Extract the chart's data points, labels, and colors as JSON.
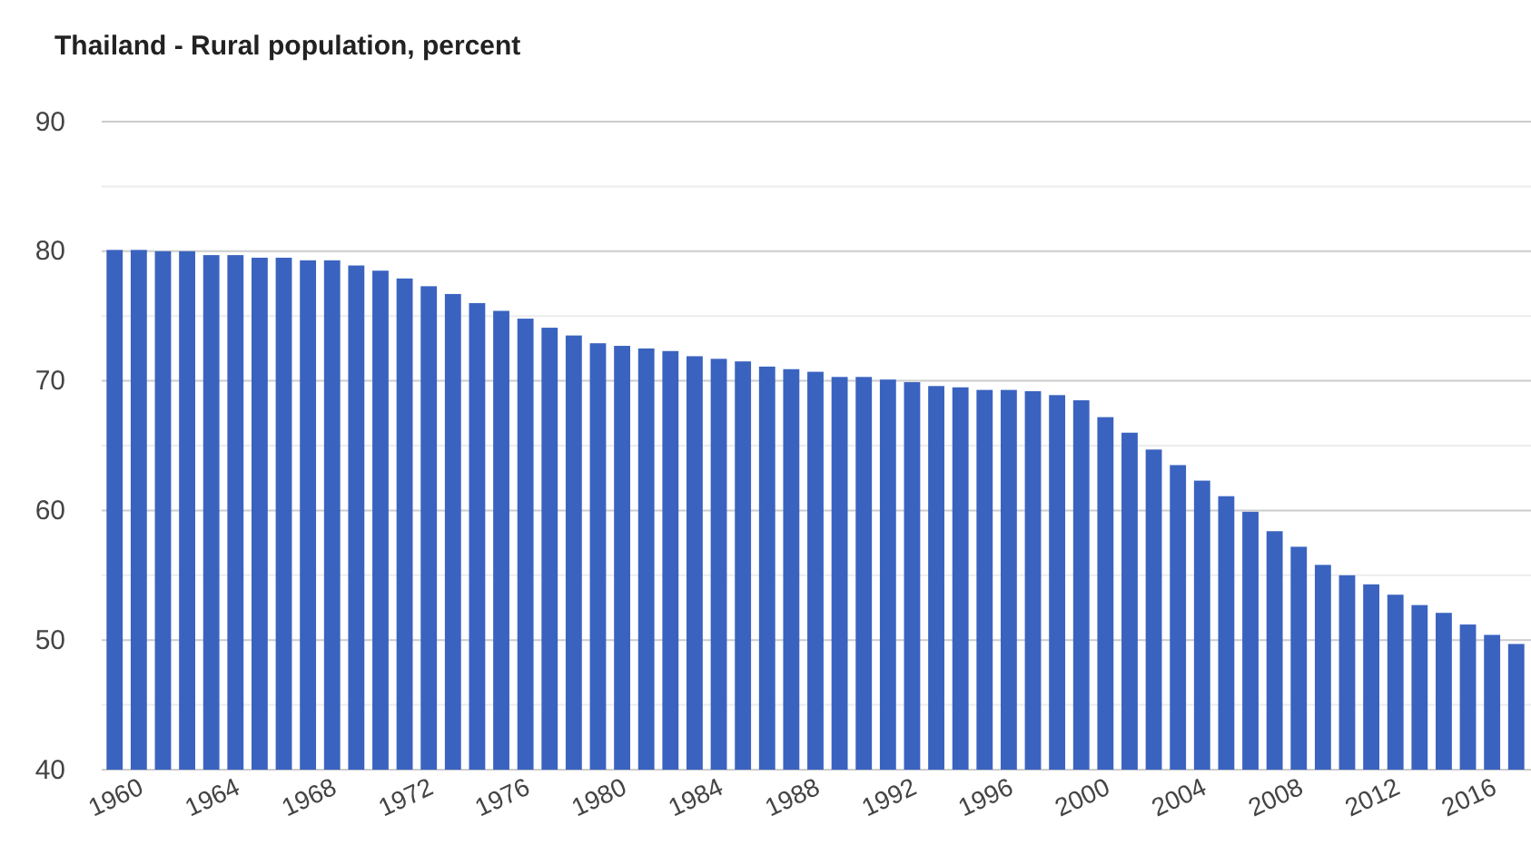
{
  "chart_data": {
    "type": "bar",
    "title": "Thailand - Rural population, percent",
    "categories": [
      "1960",
      null,
      null,
      null,
      "1964",
      null,
      null,
      null,
      "1968",
      null,
      null,
      null,
      "1972",
      null,
      null,
      null,
      "1976",
      null,
      null,
      null,
      "1980",
      null,
      null,
      null,
      "1984",
      null,
      null,
      null,
      "1988",
      null,
      null,
      null,
      "1992",
      null,
      null,
      null,
      "1996",
      null,
      null,
      null,
      "2000",
      null,
      null,
      null,
      "2004",
      null,
      null,
      null,
      "2008",
      null,
      null,
      null,
      "2012",
      null,
      null,
      null,
      "2016",
      null,
      null
    ],
    "values": [
      80.1,
      80.1,
      80.0,
      80.0,
      79.7,
      79.7,
      79.5,
      79.5,
      79.3,
      79.3,
      78.9,
      78.5,
      77.9,
      77.3,
      76.7,
      76.0,
      75.4,
      74.8,
      74.1,
      73.5,
      72.9,
      72.7,
      72.5,
      72.3,
      71.9,
      71.7,
      71.5,
      71.1,
      70.9,
      70.7,
      70.3,
      70.3,
      70.1,
      69.9,
      69.6,
      69.5,
      69.3,
      69.3,
      69.2,
      68.9,
      68.5,
      67.2,
      66.0,
      64.7,
      63.5,
      62.3,
      61.1,
      59.9,
      58.4,
      57.2,
      55.8,
      55.0,
      54.3,
      53.5,
      52.7,
      52.1,
      51.2,
      50.4,
      49.7
    ],
    "color": "#3a63c0",
    "ylim": [
      40,
      90
    ],
    "yticks": [
      40,
      {
        "value": 45,
        "label": null
      },
      50,
      {
        "value": 55,
        "label": null
      },
      60,
      {
        "value": 65,
        "label": null
      },
      70,
      {
        "value": 75,
        "label": null
      },
      80,
      {
        "value": 85,
        "label": null
      },
      90
    ],
    "grid": true
  }
}
